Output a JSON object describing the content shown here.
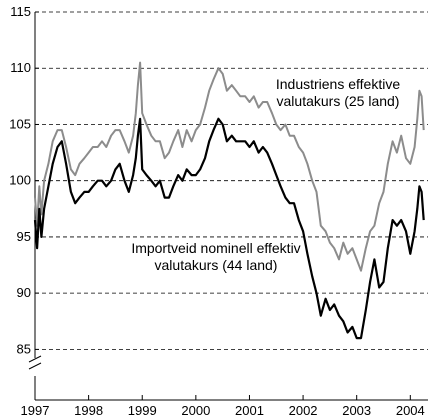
{
  "chart_data": {
    "type": "line",
    "title": "",
    "xlabel": "",
    "ylabel": "",
    "x_ticks": [
      "1997",
      "1998",
      "1999",
      "2000",
      "2001",
      "2002",
      "2003",
      "2004"
    ],
    "y_ticks": [
      "85",
      "90",
      "95",
      "100",
      "105",
      "110",
      "115"
    ],
    "xlim": [
      1997.0,
      2004.33
    ],
    "ylim": [
      80.5,
      115
    ],
    "y_axis_break": true,
    "grid": "horizontal dashed",
    "legend": "none",
    "annotations": [
      {
        "lines": [
          "Industriens effektive",
          "valutakurs (25 land)"
        ],
        "series": 0
      },
      {
        "lines": [
          "Importveid nominell effektiv",
          "valutakurs (44 land)"
        ],
        "series": 1
      }
    ],
    "series": [
      {
        "color": "#8c8c8c",
        "x": [
          1997.0,
          1997.04,
          1997.08,
          1997.12,
          1997.17,
          1997.25,
          1997.33,
          1997.42,
          1997.5,
          1997.58,
          1997.67,
          1997.75,
          1997.83,
          1997.92,
          1998.0,
          1998.08,
          1998.17,
          1998.25,
          1998.33,
          1998.42,
          1998.5,
          1998.58,
          1998.67,
          1998.75,
          1998.83,
          1998.88,
          1998.92,
          1998.96,
          1999.0,
          1999.08,
          1999.17,
          1999.25,
          1999.33,
          1999.42,
          1999.5,
          1999.58,
          1999.67,
          1999.75,
          1999.83,
          1999.92,
          2000.0,
          2000.08,
          2000.17,
          2000.25,
          2000.33,
          2000.42,
          2000.5,
          2000.58,
          2000.67,
          2000.75,
          2000.83,
          2000.92,
          2001.0,
          2001.08,
          2001.17,
          2001.25,
          2001.33,
          2001.42,
          2001.5,
          2001.58,
          2001.67,
          2001.75,
          2001.83,
          2001.92,
          2002.0,
          2002.08,
          2002.17,
          2002.25,
          2002.33,
          2002.42,
          2002.5,
          2002.58,
          2002.67,
          2002.75,
          2002.83,
          2002.92,
          2003.0,
          2003.08,
          2003.17,
          2003.25,
          2003.33,
          2003.42,
          2003.5,
          2003.58,
          2003.67,
          2003.75,
          2003.83,
          2003.92,
          2004.0,
          2004.08,
          2004.13,
          2004.17,
          2004.21,
          2004.25
        ],
        "y": [
          98.5,
          96.0,
          99.5,
          97.0,
          100.0,
          101.5,
          103.5,
          104.5,
          104.5,
          103.0,
          101.0,
          100.5,
          101.5,
          102.0,
          102.5,
          103.0,
          103.0,
          103.5,
          103.0,
          104.0,
          104.5,
          104.5,
          103.5,
          102.5,
          104.0,
          106.0,
          108.5,
          110.5,
          106.0,
          105.0,
          104.0,
          103.5,
          103.5,
          102.0,
          102.5,
          103.5,
          104.5,
          103.0,
          104.5,
          103.5,
          104.5,
          105.0,
          106.5,
          108.0,
          109.0,
          110.0,
          109.5,
          108.0,
          108.5,
          108.0,
          107.5,
          107.5,
          107.0,
          107.5,
          106.5,
          107.0,
          107.0,
          106.0,
          105.0,
          104.5,
          105.0,
          104.0,
          104.0,
          103.0,
          102.5,
          101.5,
          100.0,
          99.0,
          96.0,
          95.5,
          94.5,
          94.0,
          93.0,
          94.5,
          93.5,
          94.0,
          93.0,
          92.0,
          94.0,
          95.5,
          96.0,
          98.0,
          99.0,
          101.5,
          103.5,
          102.5,
          104.0,
          102.0,
          101.5,
          103.0,
          105.5,
          108.0,
          107.5,
          104.5
        ]
      },
      {
        "color": "#000000",
        "x": [
          1997.0,
          1997.04,
          1997.08,
          1997.12,
          1997.17,
          1997.25,
          1997.33,
          1997.42,
          1997.5,
          1997.58,
          1997.67,
          1997.75,
          1997.83,
          1997.92,
          1998.0,
          1998.08,
          1998.17,
          1998.25,
          1998.33,
          1998.42,
          1998.5,
          1998.58,
          1998.67,
          1998.75,
          1998.83,
          1998.88,
          1998.92,
          1998.96,
          1999.0,
          1999.08,
          1999.17,
          1999.25,
          1999.33,
          1999.42,
          1999.5,
          1999.58,
          1999.67,
          1999.75,
          1999.83,
          1999.92,
          2000.0,
          2000.08,
          2000.17,
          2000.25,
          2000.33,
          2000.42,
          2000.5,
          2000.58,
          2000.67,
          2000.75,
          2000.83,
          2000.92,
          2001.0,
          2001.08,
          2001.17,
          2001.25,
          2001.33,
          2001.42,
          2001.5,
          2001.58,
          2001.67,
          2001.75,
          2001.83,
          2001.92,
          2002.0,
          2002.08,
          2002.17,
          2002.25,
          2002.33,
          2002.42,
          2002.5,
          2002.58,
          2002.67,
          2002.75,
          2002.83,
          2002.92,
          2003.0,
          2003.08,
          2003.17,
          2003.25,
          2003.33,
          2003.42,
          2003.5,
          2003.58,
          2003.67,
          2003.75,
          2003.83,
          2003.92,
          2004.0,
          2004.08,
          2004.13,
          2004.17,
          2004.21,
          2004.25
        ],
        "y": [
          96.5,
          94.0,
          97.5,
          95.0,
          97.5,
          99.5,
          101.5,
          103.0,
          103.5,
          101.5,
          99.0,
          98.0,
          98.5,
          99.0,
          99.0,
          99.5,
          100.0,
          100.0,
          99.5,
          100.0,
          101.0,
          101.5,
          100.0,
          99.0,
          100.5,
          102.0,
          104.0,
          105.5,
          101.0,
          100.5,
          100.0,
          99.5,
          100.0,
          98.5,
          98.5,
          99.5,
          100.5,
          100.0,
          101.0,
          100.5,
          100.5,
          101.0,
          102.0,
          103.5,
          104.5,
          105.5,
          105.0,
          103.5,
          104.0,
          103.5,
          103.5,
          103.5,
          103.0,
          103.5,
          102.5,
          103.0,
          102.5,
          101.5,
          100.5,
          99.5,
          98.5,
          98.0,
          98.0,
          96.5,
          95.5,
          93.5,
          91.5,
          90.0,
          88.0,
          89.5,
          88.5,
          89.0,
          88.0,
          87.5,
          86.5,
          87.0,
          86.0,
          86.0,
          88.5,
          91.0,
          93.0,
          90.5,
          91.0,
          94.0,
          96.5,
          96.0,
          96.5,
          95.5,
          93.5,
          95.5,
          97.5,
          99.5,
          99.0,
          96.5
        ]
      }
    ]
  }
}
